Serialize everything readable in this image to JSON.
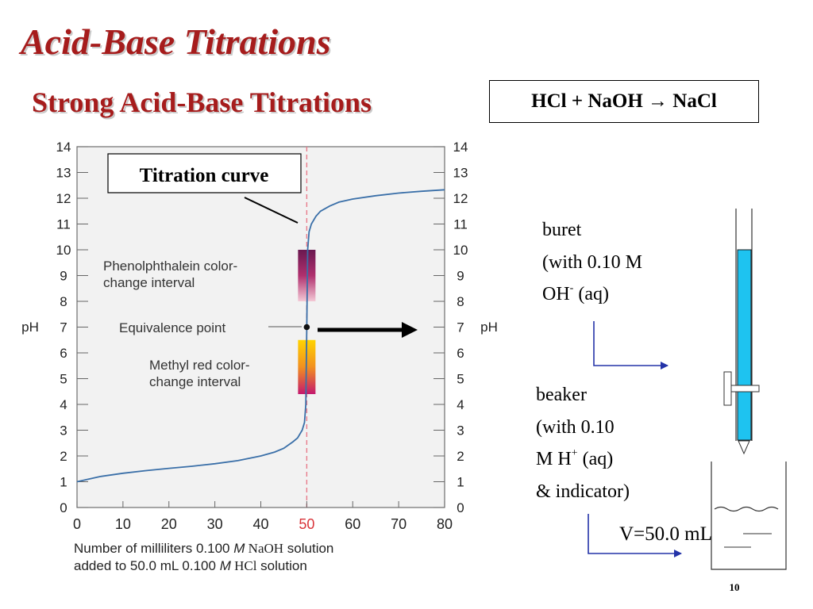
{
  "slide": {
    "title": "Acid-Base Titrations",
    "subtitle": "Strong Acid-Base Titrations",
    "equation": "HCl + NaOH → NaCl",
    "page_number": "10"
  },
  "chart_data": {
    "type": "line",
    "x_range": [
      0,
      80
    ],
    "y_range": [
      0,
      14
    ],
    "x_ticks": [
      0,
      10,
      20,
      30,
      40,
      50,
      60,
      70,
      80
    ],
    "y_ticks": [
      0,
      1,
      2,
      3,
      4,
      5,
      6,
      7,
      8,
      9,
      10,
      11,
      12,
      13,
      14
    ],
    "ylabel": "pH",
    "xlabel_line1": [
      "Number of milliliters 0.100 ",
      "M",
      " NaOH",
      " solution"
    ],
    "xlabel_line2": [
      "added to 50.0 mL 0.100 ",
      "M",
      " HCl",
      " solution"
    ],
    "equivalence_volume": 50,
    "equivalence_ph": 7,
    "grid": false,
    "series": [
      {
        "x": [
          0,
          5,
          10,
          15,
          20,
          25,
          30,
          35,
          40,
          43,
          45,
          47,
          48,
          49,
          49.5,
          49.8,
          50,
          50.2,
          50.5,
          51,
          52,
          53,
          55,
          57,
          60,
          65,
          70,
          75,
          80
        ],
        "y": [
          1.0,
          1.2,
          1.33,
          1.43,
          1.52,
          1.6,
          1.7,
          1.82,
          2.0,
          2.15,
          2.3,
          2.55,
          2.7,
          3.0,
          3.3,
          4.0,
          7.0,
          10.0,
          10.7,
          11.0,
          11.3,
          11.5,
          11.7,
          11.85,
          11.97,
          12.1,
          12.2,
          12.27,
          12.33
        ]
      }
    ],
    "bands": [
      {
        "label": [
          "Phenolphthalein color-",
          "change interval"
        ],
        "from": 8,
        "to": 10,
        "colors": [
          "#f4c9d6",
          "#b0306e",
          "#6a1850"
        ]
      },
      {
        "label": [
          "Methyl red color-",
          "change interval"
        ],
        "from": 4.4,
        "to": 6.5,
        "colors": [
          "#c4196f",
          "#f29020",
          "#ffd400"
        ]
      }
    ],
    "point_label": "Equivalence point",
    "curve_label": "Titration curve",
    "colors": {
      "curve": "#3a6fa8",
      "equivalence_line": "#e87a8a",
      "tick_text": "#222222"
    }
  },
  "apparatus": {
    "buret_label": [
      "buret",
      "(with 0.10 M",
      "OH",
      "-",
      " (aq)"
    ],
    "beaker_label": [
      "beaker",
      "(with 0.10",
      "M H",
      "+",
      " (aq)",
      "& indicator)"
    ],
    "volume_label": "V=50.0 mL",
    "colors": {
      "buret_fill": "#1ec3f0",
      "pointer": "#2433a8"
    }
  }
}
